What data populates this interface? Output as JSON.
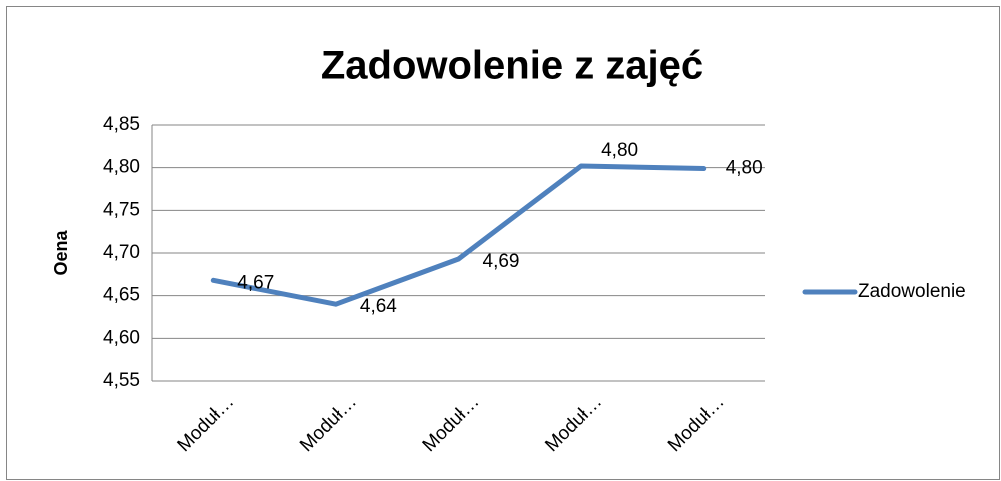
{
  "chart_data": {
    "type": "line",
    "title": "Zadowolenie z zajęć",
    "ylabel": "Oena",
    "categories": [
      "Moduł…",
      "Moduł…",
      "Moduł…",
      "Moduł…",
      "Moduł…"
    ],
    "series": [
      {
        "name": "Zadowolenie",
        "color": "#4f81bd",
        "values": [
          4.668,
          4.64,
          4.693,
          4.802,
          4.799
        ],
        "value_labels": [
          "4,67",
          "4,64",
          "4,69",
          "4,80",
          "4,80"
        ]
      }
    ],
    "ylim": [
      4.55,
      4.85
    ],
    "yticks": [
      {
        "value": 4.55,
        "label": "4,55"
      },
      {
        "value": 4.6,
        "label": "4,60"
      },
      {
        "value": 4.65,
        "label": "4,65"
      },
      {
        "value": 4.7,
        "label": "4,70"
      },
      {
        "value": 4.75,
        "label": "4,75"
      },
      {
        "value": 4.8,
        "label": "4,80"
      },
      {
        "value": 4.85,
        "label": "4,85"
      }
    ],
    "grid": true,
    "legend": "right"
  }
}
